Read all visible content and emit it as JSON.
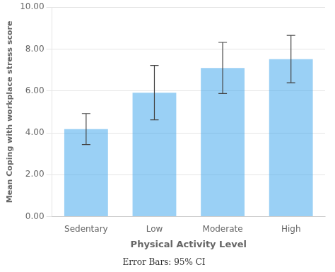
{
  "chart_data": {
    "type": "bar",
    "categories": [
      "Sedentary",
      "Low",
      "Moderate",
      "High"
    ],
    "values": [
      4.18,
      5.92,
      7.1,
      7.52
    ],
    "ci_lower": [
      3.44,
      4.62,
      5.88,
      6.39
    ],
    "ci_upper": [
      4.92,
      7.22,
      8.32,
      8.65
    ],
    "xlabel": "Physical Activity Level",
    "ylabel": "Mean Coping with workplace stress score",
    "annotations": [
      "Error Bars: 95% CI"
    ],
    "ylim": [
      0.0,
      10.0
    ],
    "yticks": [
      {
        "value": 0.0,
        "label": "0.00"
      },
      {
        "value": 2.0,
        "label": "2.00"
      },
      {
        "value": 4.0,
        "label": "4.00"
      },
      {
        "value": 6.0,
        "label": "6.00"
      },
      {
        "value": 8.0,
        "label": "8.00"
      },
      {
        "value": 10.0,
        "label": "10.00"
      }
    ],
    "grid": true
  }
}
